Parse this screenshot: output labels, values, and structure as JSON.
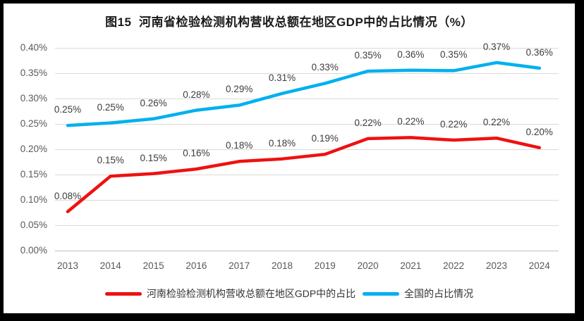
{
  "frame": {
    "border_color": "#000000",
    "background_color": "#ffffff"
  },
  "chart_data": {
    "type": "line",
    "title": "图15  河南省检验检测机构营收总额在地区GDP中的占比情况（%）",
    "xlabel": "",
    "ylabel": "",
    "unit": "%",
    "ylim": [
      0.0,
      0.4
    ],
    "y_tick_step": 0.05,
    "grid": true,
    "legend_position": "bottom",
    "categories": [
      "2013",
      "2014",
      "2015",
      "2016",
      "2017",
      "2018",
      "2019",
      "2020",
      "2021",
      "2022",
      "2023",
      "2024"
    ],
    "y_ticks": [
      {
        "label": "0.40%",
        "value": 0.4
      },
      {
        "label": "0.35%",
        "value": 0.35
      },
      {
        "label": "0.30%",
        "value": 0.3
      },
      {
        "label": "0.25%",
        "value": 0.25
      },
      {
        "label": "0.20%",
        "value": 0.2
      },
      {
        "label": "0.15%",
        "value": 0.15
      },
      {
        "label": "0.10%",
        "value": 0.1
      },
      {
        "label": "0.05%",
        "value": 0.05
      },
      {
        "label": "0.00%",
        "value": 0.0
      }
    ],
    "series": [
      {
        "name": "河南检验检测机构营收总额在地区GDP中的占比",
        "color": "#ee1111",
        "values": [
          0.08,
          0.15,
          0.15,
          0.16,
          0.18,
          0.18,
          0.19,
          0.22,
          0.22,
          0.22,
          0.22,
          0.2
        ],
        "labels": [
          "0.08%",
          "0.15%",
          "0.15%",
          "0.16%",
          "0.18%",
          "0.18%",
          "0.19%",
          "0.22%",
          "0.22%",
          "0.22%",
          "0.22%",
          "0.20%"
        ],
        "plot_values": [
          0.077,
          0.147,
          0.152,
          0.161,
          0.176,
          0.181,
          0.19,
          0.221,
          0.223,
          0.218,
          0.222,
          0.203
        ]
      },
      {
        "name": "全国的占比情况",
        "color": "#00b0f0",
        "values": [
          0.25,
          0.25,
          0.26,
          0.28,
          0.29,
          0.31,
          0.33,
          0.35,
          0.36,
          0.35,
          0.37,
          0.36
        ],
        "labels": [
          "0.25%",
          "0.25%",
          "0.26%",
          "0.28%",
          "0.29%",
          "0.31%",
          "0.33%",
          "0.35%",
          "0.36%",
          "0.35%",
          "0.37%",
          "0.36%"
        ],
        "plot_values": [
          0.247,
          0.252,
          0.26,
          0.277,
          0.287,
          0.31,
          0.33,
          0.354,
          0.356,
          0.355,
          0.371,
          0.36
        ]
      }
    ]
  }
}
